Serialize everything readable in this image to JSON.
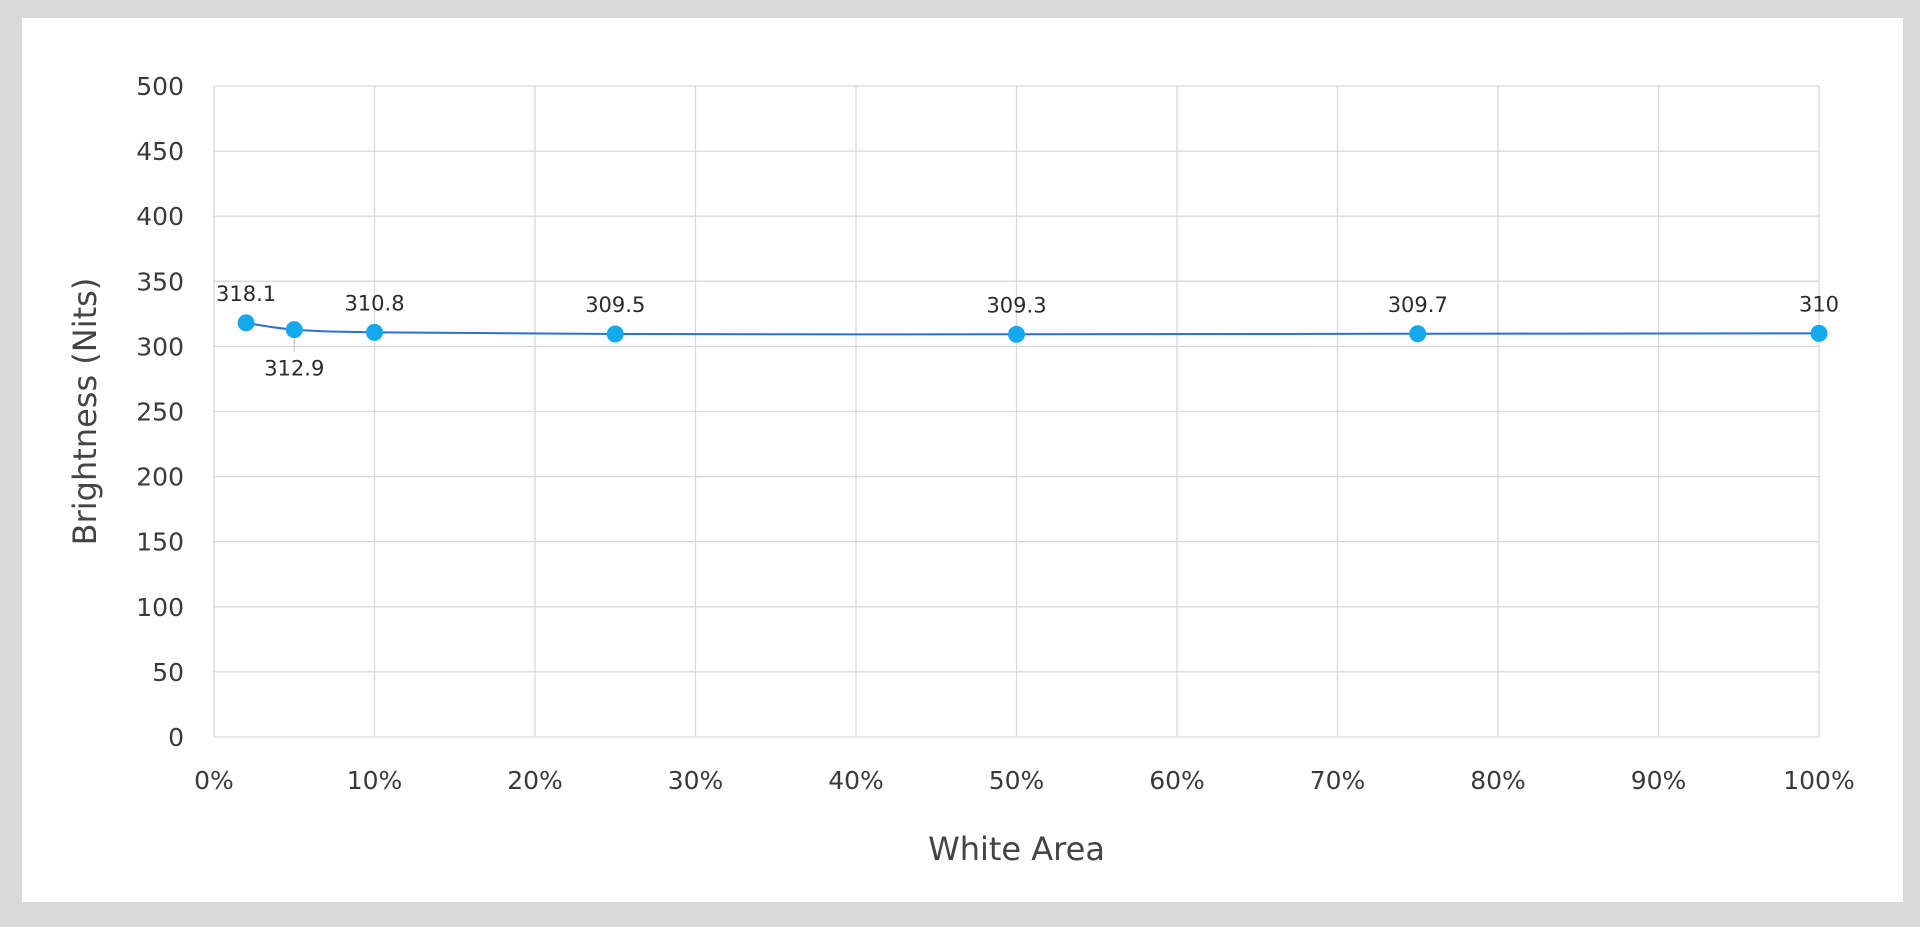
{
  "chart_data": {
    "type": "line",
    "xlabel": "White Area",
    "ylabel": "Brightness (Nits)",
    "xlim": [
      0,
      100
    ],
    "ylim": [
      0,
      500
    ],
    "x_ticks": [
      "0%",
      "10%",
      "20%",
      "30%",
      "40%",
      "50%",
      "60%",
      "70%",
      "80%",
      "90%",
      "100%"
    ],
    "y_ticks": [
      "0",
      "50",
      "100",
      "150",
      "200",
      "250",
      "300",
      "350",
      "400",
      "450",
      "500"
    ],
    "grid": true,
    "series": [
      {
        "x": [
          2,
          5,
          10,
          25,
          50,
          75,
          100
        ],
        "y": [
          318.1,
          312.9,
          310.8,
          309.5,
          309.3,
          309.7,
          310
        ],
        "labels": [
          "318.1",
          "312.9",
          "310.8",
          "309.5",
          "309.3",
          "309.7",
          "310"
        ]
      }
    ],
    "colors": {
      "line": "#2f6fd0",
      "marker": "#14a9ec",
      "grid": "#d9d9d9",
      "frame_background": "#ffffff",
      "page_background": "#d9d9d9"
    }
  }
}
